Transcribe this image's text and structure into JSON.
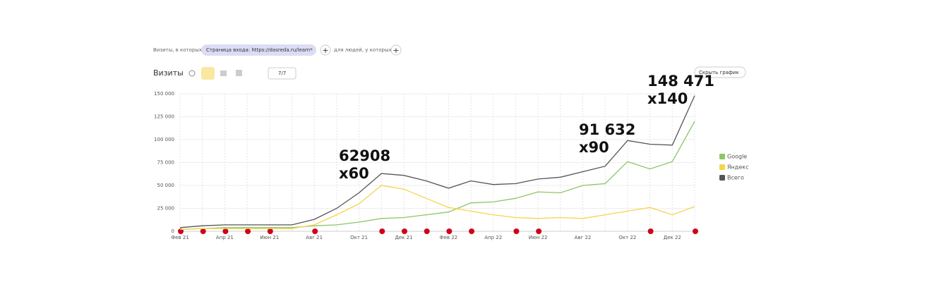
{
  "ui": {
    "filter_prefix": "Визиты, в которых",
    "filter_chip": "Страница входа: https://dasreda.ru/learn*",
    "filter_people": "для людей, у которых",
    "metric": "Визиты",
    "series_count": "7/7",
    "hide_chart": "Скрыть график"
  },
  "chart_data": {
    "type": "line",
    "categories": [
      "Фев 21",
      null,
      "Апр 21",
      null,
      "Июн 21",
      null,
      "Авг 21",
      null,
      "Окт 21",
      null,
      "Дек 21",
      null,
      "Фев 22",
      null,
      "Апр 22",
      null,
      "Июн 22",
      null,
      "Авг 22",
      null,
      "Окт 22",
      null,
      "Дек 22",
      null
    ],
    "series": [
      {
        "name": "Google",
        "color": "#8cc665",
        "values": [
          2000,
          3000,
          4000,
          4000,
          4000,
          4000,
          6000,
          7000,
          10000,
          14000,
          15000,
          18000,
          21000,
          31000,
          32000,
          36000,
          43000,
          42000,
          50000,
          52000,
          76000,
          68000,
          76000,
          120000
        ]
      },
      {
        "name": "Яндекс",
        "color": "#f5d54a",
        "values": [
          2000,
          3000,
          3000,
          3000,
          3000,
          3000,
          7000,
          18000,
          30000,
          50000,
          46000,
          36000,
          26000,
          22000,
          18000,
          15000,
          14000,
          15000,
          14000,
          18000,
          22000,
          26000,
          18000,
          27000
        ]
      },
      {
        "name": "Всего",
        "color": "#555555",
        "values": [
          4000,
          6000,
          7000,
          7000,
          7000,
          7000,
          13000,
          25000,
          42000,
          63000,
          61000,
          55000,
          47000,
          55000,
          51000,
          52000,
          57000,
          59000,
          65000,
          71000,
          99000,
          95000,
          94000,
          148000
        ]
      }
    ],
    "ylim": [
      0,
      150000
    ],
    "yticks": [
      0,
      {
        "value": 25000,
        "label": "25 000"
      },
      {
        "value": 50000,
        "label": "50 000"
      },
      {
        "value": 75000,
        "label": "75 000"
      },
      {
        "value": 100000,
        "label": "100 000"
      },
      {
        "value": 125000,
        "label": "125 000"
      },
      {
        "value": 150000,
        "label": "150 000"
      }
    ],
    "grid": true,
    "legend": "right",
    "annotations": [
      [
        "62908",
        "x60"
      ],
      [
        "91 632",
        "x90"
      ],
      [
        "148 471",
        "x140"
      ]
    ]
  }
}
